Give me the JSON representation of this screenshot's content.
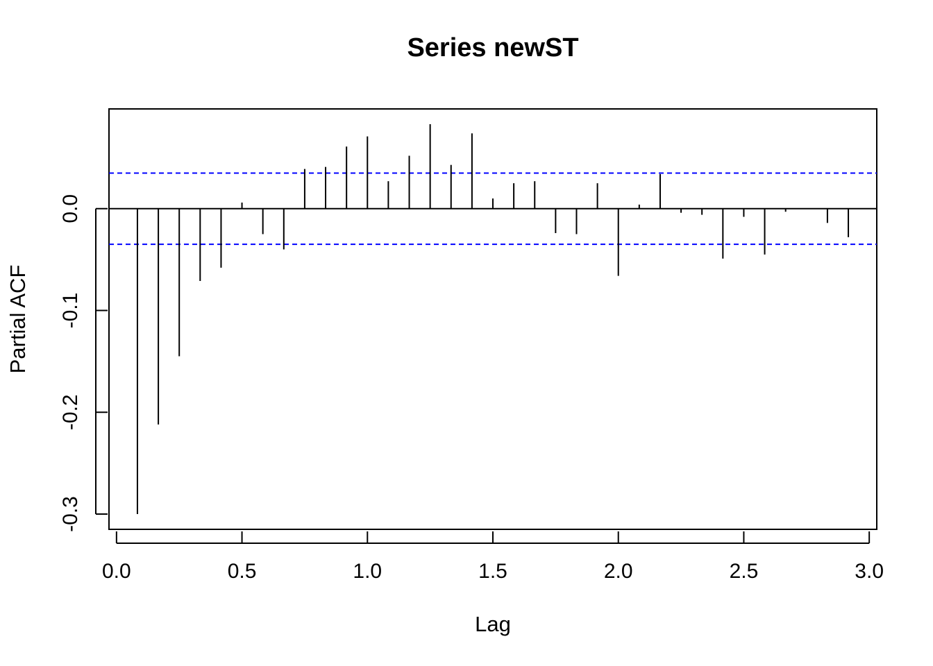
{
  "chart_data": {
    "type": "bar",
    "title": "Series  newST",
    "xlabel": "Lag",
    "ylabel": "Partial ACF",
    "xlim": [
      -0.03,
      3.03
    ],
    "ylim": [
      -0.315,
      0.098
    ],
    "x_ticks": [
      0.0,
      0.5,
      1.0,
      1.5,
      2.0,
      2.5,
      3.0
    ],
    "x_tick_labels": [
      "0.0",
      "0.5",
      "1.0",
      "1.5",
      "2.0",
      "2.5",
      "3.0"
    ],
    "y_ticks": [
      -0.3,
      -0.2,
      -0.1,
      0.0
    ],
    "y_tick_labels": [
      "-0.3",
      "-0.2",
      "-0.1",
      "0.0"
    ],
    "confidence_limit": 0.035,
    "grid": false,
    "legend": "none",
    "colors": {
      "spikes": "#000000",
      "confidence_lines": "#0000ff",
      "axes": "#000000",
      "background": "#ffffff"
    },
    "series": [
      {
        "x": [
          0.0833,
          0.1667,
          0.25,
          0.3333,
          0.4167,
          0.5,
          0.5833,
          0.6667,
          0.75,
          0.8333,
          0.9167,
          1.0,
          1.0833,
          1.1667,
          1.25,
          1.3333,
          1.4167,
          1.5,
          1.5833,
          1.6667,
          1.75,
          1.8333,
          1.9167,
          2.0,
          2.0833,
          2.1667,
          2.25,
          2.3333,
          2.4167,
          2.5,
          2.5833,
          2.6667,
          2.75,
          2.8333,
          2.9167
        ],
        "values": [
          -0.3,
          -0.212,
          -0.145,
          -0.071,
          -0.058,
          0.006,
          -0.025,
          -0.04,
          0.039,
          0.041,
          0.061,
          0.071,
          0.027,
          0.052,
          0.083,
          0.043,
          0.074,
          0.01,
          0.025,
          0.027,
          -0.024,
          -0.025,
          0.025,
          -0.066,
          0.004,
          0.034,
          -0.004,
          -0.006,
          -0.049,
          -0.008,
          -0.045,
          -0.003,
          0.0,
          -0.014,
          -0.028
        ]
      }
    ]
  }
}
